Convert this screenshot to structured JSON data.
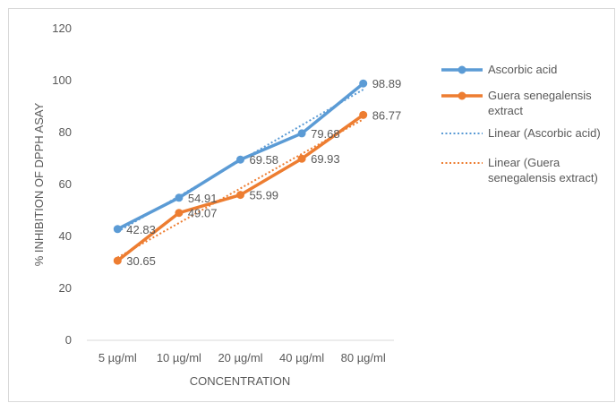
{
  "chart_data": {
    "type": "line",
    "title": "",
    "xlabel": "CONCENTRATION",
    "ylabel": "% INHIBITION OF DPPH ASAY",
    "categories": [
      "5 µg/ml",
      "10 µg/ml",
      "20 µg/ml",
      "40 µg/ml",
      "80 µg/ml"
    ],
    "ylim": [
      0,
      120
    ],
    "yticks": [
      0,
      20,
      40,
      60,
      80,
      100,
      120
    ],
    "grid": false,
    "legend_position": "right",
    "series": [
      {
        "name": "Ascorbic acid",
        "values": [
          42.83,
          54.91,
          69.58,
          79.68,
          98.89
        ],
        "color": "#5b9bd5"
      },
      {
        "name": "Guera senegalensis extract",
        "values": [
          30.65,
          49.07,
          55.99,
          69.93,
          86.77
        ],
        "color": "#ed7d31"
      }
    ],
    "trendlines": [
      {
        "name": "Linear (Ascorbic acid)",
        "of_series": 0,
        "color": "#5b9bd5",
        "style": "dotted"
      },
      {
        "name": "Linear (Guera senegalensis extract)",
        "of_series": 1,
        "color": "#ed7d31",
        "style": "dotted"
      }
    ],
    "legend": [
      {
        "lines": [
          "Ascorbic acid"
        ],
        "kind": "series",
        "color": "#5b9bd5"
      },
      {
        "lines": [
          "Guera senegalensis",
          "extract"
        ],
        "kind": "series",
        "color": "#ed7d31"
      },
      {
        "lines": [
          "Linear (Ascorbic acid)"
        ],
        "kind": "trend",
        "color": "#5b9bd5"
      },
      {
        "lines": [
          "Linear (Guera",
          "senegalensis extract)"
        ],
        "kind": "trend",
        "color": "#ed7d31"
      }
    ]
  }
}
